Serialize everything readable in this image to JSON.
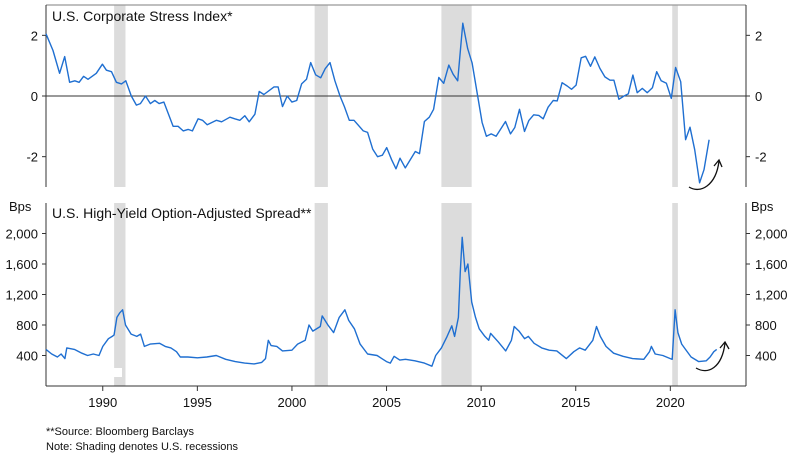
{
  "chart_data": [
    {
      "type": "line",
      "title": "U.S. Corporate Stress Index*",
      "xlabel": "",
      "ylabel": "",
      "xlim": [
        1987,
        2024
      ],
      "ylim": [
        -3,
        3
      ],
      "yticks": [
        2,
        0,
        -2
      ],
      "ytick_labels": [
        "2",
        "0",
        "-2"
      ],
      "series": [
        {
          "name": "U.S. Corporate Stress Index",
          "color": "#1f6fd1",
          "x": [
            1987.0,
            1987.37,
            1987.72,
            1987.99,
            1988.25,
            1988.52,
            1988.75,
            1988.99,
            1989.22,
            1989.66,
            1989.98,
            1990.19,
            1990.46,
            1990.72,
            1990.99,
            1991.22,
            1991.51,
            1991.78,
            1991.99,
            1992.26,
            1992.52,
            1992.75,
            1992.98,
            1993.23,
            1993.72,
            1993.98,
            1994.25,
            1994.51,
            1994.74,
            1995.04,
            1995.27,
            1995.52,
            1996.01,
            1996.28,
            1996.72,
            1996.98,
            1997.25,
            1997.51,
            1997.74,
            1998.04,
            1998.27,
            1998.52,
            1999.05,
            1999.27,
            1999.5,
            1999.75,
            2000.0,
            2000.25,
            2000.51,
            2000.77,
            2000.99,
            2001.25,
            2001.52,
            2001.76,
            2002.01,
            2002.27,
            2002.54,
            2002.77,
            2003.03,
            2003.28,
            2003.77,
            2004.0,
            2004.27,
            2004.53,
            2004.78,
            2005.01,
            2005.27,
            2005.5,
            2005.71,
            2005.99,
            2006.52,
            2006.74,
            2007.0,
            2007.26,
            2007.49,
            2007.76,
            2008.02,
            2008.29,
            2008.52,
            2008.76,
            2009.03,
            2009.29,
            2009.52,
            2009.79,
            2010.05,
            2010.28,
            2010.53,
            2010.79,
            2011.29,
            2011.55,
            2011.78,
            2012.03,
            2012.29,
            2012.52,
            2012.78,
            2013.05,
            2013.28,
            2013.54,
            2013.81,
            2014.02,
            2014.28,
            2014.55,
            2014.78,
            2015.02,
            2015.29,
            2015.52,
            2015.78,
            2016.01,
            2016.28,
            2016.54,
            2016.81,
            2017.02,
            2017.28,
            2017.55,
            2017.78,
            2018.02,
            2018.25,
            2018.52,
            2018.78,
            2019.05,
            2019.28,
            2019.52,
            2019.79,
            2020.05,
            2020.28,
            2020.55,
            2020.81,
            2021.04,
            2021.29,
            2021.55,
            2021.78,
            2022.05
          ],
          "values": [
            2.05,
            1.5,
            0.75,
            1.3,
            0.45,
            0.5,
            0.45,
            0.65,
            0.55,
            0.75,
            1.05,
            0.85,
            0.8,
            0.45,
            0.4,
            0.5,
            0,
            -0.3,
            -0.25,
            0,
            -0.25,
            -0.15,
            -0.25,
            -0.2,
            -1.0,
            -1.0,
            -1.15,
            -1.1,
            -1.15,
            -0.75,
            -0.8,
            -0.95,
            -0.8,
            -0.85,
            -0.7,
            -0.75,
            -0.8,
            -0.65,
            -0.85,
            -0.6,
            0.15,
            0.05,
            0.3,
            0.3,
            -0.35,
            0,
            -0.2,
            -0.15,
            0.4,
            0.55,
            1.1,
            0.7,
            0.6,
            0.9,
            1.1,
            0.5,
            0,
            -0.35,
            -0.8,
            -0.8,
            -1.15,
            -1.2,
            -1.75,
            -2.0,
            -1.95,
            -1.7,
            -2.1,
            -2.4,
            -2.05,
            -2.37,
            -1.83,
            -1.9,
            -0.84,
            -0.7,
            -0.44,
            0.61,
            0.42,
            1.02,
            0.72,
            0.5,
            2.4,
            1.56,
            1.09,
            0.09,
            -0.87,
            -1.33,
            -1.25,
            -1.33,
            -0.84,
            -1.25,
            -1.04,
            -0.44,
            -1.17,
            -0.81,
            -0.62,
            -0.64,
            -0.75,
            -0.37,
            -0.15,
            -0.16,
            0.44,
            0.33,
            0.22,
            0.36,
            1.26,
            1.31,
            0.98,
            1.29,
            0.91,
            0.63,
            0.52,
            0.52,
            -0.11,
            0,
            0.07,
            0.69,
            0.11,
            0.25,
            0.11,
            0.27,
            0.8,
            0.5,
            0.42,
            -0.08,
            0.94,
            0.47,
            -1.44,
            -1.03,
            -1.77,
            -2.86,
            -2.43,
            -1.44
          ]
        }
      ]
    },
    {
      "type": "line",
      "title": "U.S. High-Yield Option-Adjusted Spread**",
      "xlabel": "",
      "ylabel": "Bps",
      "xlim": [
        1987,
        2024
      ],
      "ylim": [
        0,
        2400
      ],
      "yticks": [
        2000,
        1600,
        1200,
        800,
        400
      ],
      "ytick_labels": [
        "2,000",
        "1,600",
        "1,200",
        "800",
        "400"
      ],
      "xticks": [
        1990,
        1995,
        2000,
        2005,
        2010,
        2015,
        2020
      ],
      "xtick_labels": [
        "1990",
        "1995",
        "2000",
        "2005",
        "2010",
        "2015",
        "2020"
      ],
      "series": [
        {
          "name": "U.S. High-Yield OAS",
          "color": "#1f6fd1",
          "x": [
            1987.0,
            1987.3,
            1987.6,
            1987.8,
            1988.0,
            1988.1,
            1988.5,
            1988.9,
            1989.2,
            1989.5,
            1989.8,
            1990.0,
            1990.3,
            1990.5,
            1990.6,
            1990.75,
            1990.9,
            1991.05,
            1991.2,
            1991.5,
            1991.8,
            1992.0,
            1992.2,
            1992.5,
            1993.0,
            1993.3,
            1993.6,
            1993.9,
            1994.1,
            1994.5,
            1995.0,
            1995.5,
            1996.0,
            1996.5,
            1997.0,
            1997.5,
            1998.0,
            1998.4,
            1998.6,
            1998.75,
            1998.9,
            1999.2,
            1999.5,
            2000.0,
            2000.3,
            2000.7,
            2000.9,
            2001.1,
            2001.5,
            2001.6,
            2001.9,
            2002.2,
            2002.5,
            2002.8,
            2003.0,
            2003.3,
            2003.6,
            2004.0,
            2004.5,
            2005.0,
            2005.2,
            2005.4,
            2005.7,
            2006.0,
            2006.5,
            2007.0,
            2007.4,
            2007.6,
            2007.9,
            2008.2,
            2008.45,
            2008.6,
            2008.8,
            2008.9,
            2009.0,
            2009.15,
            2009.3,
            2009.5,
            2009.7,
            2009.9,
            2010.2,
            2010.4,
            2010.5,
            2010.9,
            2011.3,
            2011.6,
            2011.75,
            2012.0,
            2012.3,
            2012.5,
            2012.8,
            2013.2,
            2013.6,
            2014.0,
            2014.5,
            2014.9,
            2015.2,
            2015.5,
            2015.9,
            2016.1,
            2016.3,
            2016.6,
            2017.0,
            2017.5,
            2018.0,
            2018.6,
            2018.9,
            2019.0,
            2019.2,
            2019.6,
            2020.0,
            2020.1,
            2020.25,
            2020.4,
            2020.6,
            2020.8,
            2021.1,
            2021.5,
            2021.9,
            2022.1,
            2022.3,
            2022.45
          ],
          "values": [
            480,
            420,
            380,
            420,
            360,
            500,
            480,
            430,
            400,
            420,
            400,
            520,
            620,
            650,
            670,
            900,
            960,
            1000,
            800,
            680,
            650,
            680,
            520,
            550,
            560,
            520,
            500,
            450,
            380,
            380,
            370,
            380,
            400,
            350,
            320,
            300,
            290,
            310,
            360,
            600,
            530,
            520,
            460,
            470,
            550,
            600,
            800,
            720,
            780,
            920,
            800,
            700,
            900,
            1000,
            860,
            750,
            550,
            420,
            400,
            320,
            300,
            390,
            340,
            350,
            330,
            300,
            260,
            400,
            500,
            650,
            790,
            650,
            900,
            1500,
            1950,
            1500,
            1600,
            1100,
            900,
            750,
            650,
            600,
            690,
            580,
            460,
            600,
            780,
            720,
            620,
            650,
            560,
            500,
            470,
            460,
            360,
            450,
            500,
            470,
            600,
            780,
            650,
            520,
            430,
            390,
            360,
            350,
            450,
            520,
            420,
            400,
            360,
            350,
            1000,
            700,
            550,
            480,
            380,
            320,
            330,
            380,
            450,
            480
          ]
        }
      ]
    }
  ],
  "recessions": [
    [
      1990.6,
      1991.2
    ],
    [
      2001.2,
      2001.9
    ],
    [
      2007.9,
      2009.5
    ],
    [
      2020.1,
      2020.4
    ]
  ],
  "colors": {
    "line": "#1f6fd1",
    "shading": "#dcdcdc",
    "axis": "#333333"
  },
  "footnotes": {
    "source": "**Source: Bloomberg Barclays",
    "note": "Note: Shading denotes U.S. recessions"
  }
}
